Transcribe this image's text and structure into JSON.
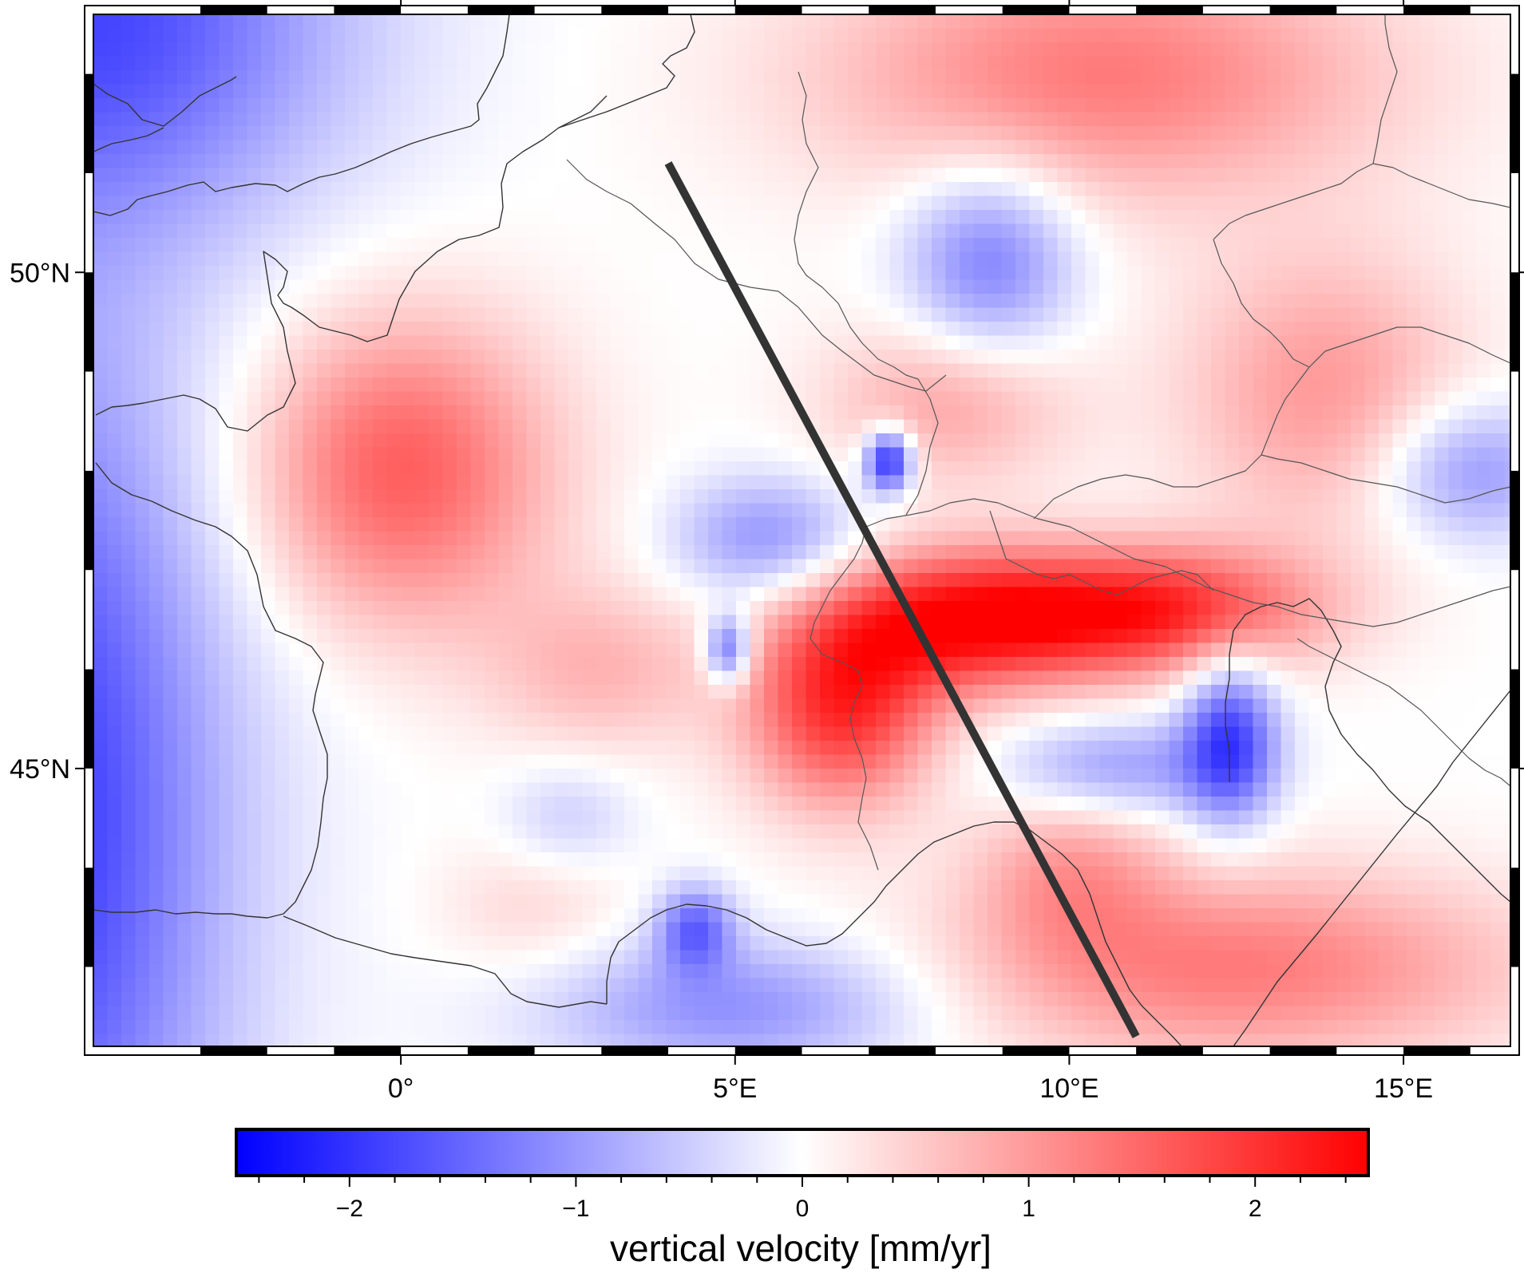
{
  "map": {
    "title": "",
    "extent": {
      "lon_min": -4.6,
      "lon_max": 16.6,
      "lat_min": 42.2,
      "lat_max": 52.6
    },
    "lon_ticks": [
      {
        "value": 0,
        "label": "0°"
      },
      {
        "value": 5,
        "label": "5°E"
      },
      {
        "value": 10,
        "label": "10°E"
      },
      {
        "value": 15,
        "label": "15°E"
      }
    ],
    "lat_ticks": [
      {
        "value": 45,
        "label": "45°N"
      },
      {
        "value": 50,
        "label": "50°N"
      }
    ],
    "profile_line": {
      "start": {
        "lon": 4.0,
        "lat": 51.1
      },
      "end": {
        "lon": 11.0,
        "lat": 42.3
      },
      "color": "#333333"
    },
    "coastline_color": "#333333"
  },
  "chart_data": {
    "type": "heatmap",
    "title": "",
    "xlabel": "",
    "ylabel": "",
    "xlim": [
      -4.6,
      16.6
    ],
    "ylim": [
      42.2,
      52.6
    ],
    "field": "vertical velocity",
    "units": "mm/yr",
    "features": [
      {
        "name": "uplift-west-france",
        "lon": 0.0,
        "lat": 48.0,
        "value": 1.6,
        "sigma_lon": 1.6,
        "sigma_lat": 1.1
      },
      {
        "name": "uplift-western-alps",
        "lon": 6.6,
        "lat": 45.6,
        "value": 2.0,
        "sigma_lon": 1.0,
        "sigma_lat": 0.7
      },
      {
        "name": "uplift-central-alps",
        "lon": 8.5,
        "lat": 46.5,
        "value": 2.3,
        "sigma_lon": 1.6,
        "sigma_lat": 0.5
      },
      {
        "name": "uplift-eastern-alps",
        "lon": 11.5,
        "lat": 46.6,
        "value": 1.9,
        "sigma_lon": 1.6,
        "sigma_lat": 0.45
      },
      {
        "name": "uplift-germany-north",
        "lon": 10.5,
        "lat": 52.0,
        "value": 1.3,
        "sigma_lon": 3.0,
        "sigma_lat": 0.9
      },
      {
        "name": "uplift-bohemia",
        "lon": 13.8,
        "lat": 48.8,
        "value": 1.0,
        "sigma_lon": 1.5,
        "sigma_lat": 1.0
      },
      {
        "name": "uplift-vosges",
        "lon": 8.2,
        "lat": 48.7,
        "value": 0.9,
        "sigma_lon": 1.3,
        "sigma_lat": 0.6
      },
      {
        "name": "uplift-massif-central",
        "lon": 3.0,
        "lat": 46.0,
        "value": 0.7,
        "sigma_lon": 1.2,
        "sigma_lat": 0.6
      },
      {
        "name": "uplift-apennines",
        "lon": 12.5,
        "lat": 43.0,
        "value": 1.3,
        "sigma_lon": 3.0,
        "sigma_lat": 0.7
      },
      {
        "name": "uplift-liguria",
        "lon": 10.0,
        "lat": 44.0,
        "value": 0.8,
        "sigma_lon": 1.0,
        "sigma_lat": 0.6
      },
      {
        "name": "uplift-pyrenees-east",
        "lon": 2.0,
        "lat": 43.6,
        "value": 0.4,
        "sigma_lon": 1.0,
        "sigma_lat": 0.5
      },
      {
        "name": "subsidence-rhine-graben",
        "lon": 8.8,
        "lat": 50.1,
        "value": -1.3,
        "sigma_lon": 0.9,
        "sigma_lat": 0.7
      },
      {
        "name": "subsidence-upper-rhine-spot",
        "lon": 7.3,
        "lat": 48.1,
        "value": -2.3,
        "sigma_lon": 0.25,
        "sigma_lat": 0.22
      },
      {
        "name": "subsidence-burgundy",
        "lon": 5.5,
        "lat": 47.3,
        "value": -1.1,
        "sigma_lon": 1.0,
        "sigma_lat": 0.45
      },
      {
        "name": "subsidence-jura-spot",
        "lon": 4.9,
        "lat": 46.2,
        "value": -1.7,
        "sigma_lon": 0.25,
        "sigma_lat": 0.25
      },
      {
        "name": "subsidence-po-plain",
        "lon": 10.7,
        "lat": 45.0,
        "value": -1.0,
        "sigma_lon": 1.2,
        "sigma_lat": 0.35
      },
      {
        "name": "subsidence-venice",
        "lon": 12.4,
        "lat": 45.3,
        "value": -1.8,
        "sigma_lon": 0.5,
        "sigma_lat": 0.6
      },
      {
        "name": "subsidence-vienna-basin",
        "lon": 16.0,
        "lat": 48.0,
        "value": -1.1,
        "sigma_lon": 1.0,
        "sigma_lat": 0.5
      },
      {
        "name": "subsidence-rhone-delta",
        "lon": 4.4,
        "lat": 43.4,
        "value": -1.4,
        "sigma_lon": 0.4,
        "sigma_lat": 0.3
      },
      {
        "name": "subsidence-gulf-of-lion",
        "lon": 5.0,
        "lat": 42.6,
        "value": -1.1,
        "sigma_lon": 2.0,
        "sigma_lat": 0.5
      },
      {
        "name": "subsidence-atlantic-west",
        "lon": -5.5,
        "lat": 44.5,
        "value": -2.0,
        "sigma_lon": 2.0,
        "sigma_lat": 3.5
      },
      {
        "name": "subsidence-channel",
        "lon": -4.5,
        "lat": 52.6,
        "value": -1.7,
        "sigma_lon": 2.6,
        "sigma_lat": 1.5
      },
      {
        "name": "subsidence-south-france",
        "lon": 2.5,
        "lat": 44.5,
        "value": -0.5,
        "sigma_lon": 0.7,
        "sigma_lat": 0.4
      }
    ],
    "colorbar": {
      "range": [
        -2.5,
        2.5
      ],
      "colors": [
        "#0000ff",
        "#ffffff",
        "#ff0000"
      ],
      "labels": [
        "-2",
        "-1",
        "0",
        "1",
        "2"
      ],
      "label_values": [
        -2,
        -1,
        0,
        1,
        2
      ],
      "minor_step": 0.2,
      "title": "vertical velocity [mm/yr]"
    }
  }
}
